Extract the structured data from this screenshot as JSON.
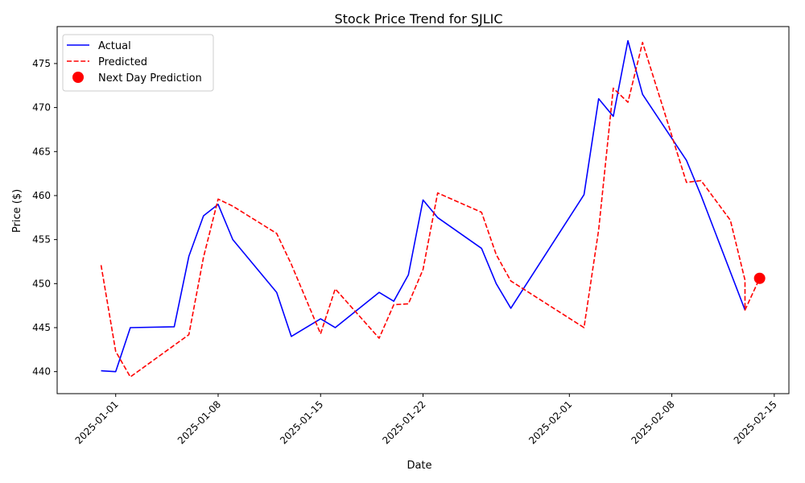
{
  "chart_data": {
    "type": "line",
    "title": "Stock Price Trend for SJLIC",
    "xlabel": "Date",
    "ylabel": "Price ($)",
    "x_axis_type": "date",
    "xlim": [
      "2024-12-28",
      "2025-02-16"
    ],
    "ylim": [
      437.5,
      479.2
    ],
    "grid": false,
    "legend_position": "top-left",
    "x_ticks": [
      "2025-01-01",
      "2025-01-08",
      "2025-01-15",
      "2025-01-22",
      "2025-02-01",
      "2025-02-08",
      "2025-02-15"
    ],
    "y_ticks": [
      440,
      445,
      450,
      455,
      460,
      465,
      470,
      475
    ],
    "series": [
      {
        "name": "Actual",
        "style": "solid",
        "color": "#0000ff",
        "points": [
          [
            "2024-12-31",
            440.1
          ],
          [
            "2025-01-01",
            440.0
          ],
          [
            "2025-01-02",
            445.0
          ],
          [
            "2025-01-05",
            445.1
          ],
          [
            "2025-01-06",
            453.1
          ],
          [
            "2025-01-07",
            457.7
          ],
          [
            "2025-01-08",
            459.0
          ],
          [
            "2025-01-09",
            455.0
          ],
          [
            "2025-01-12",
            449.0
          ],
          [
            "2025-01-13",
            444.0
          ],
          [
            "2025-01-15",
            446.0
          ],
          [
            "2025-01-16",
            445.0
          ],
          [
            "2025-01-19",
            449.0
          ],
          [
            "2025-01-20",
            448.0
          ],
          [
            "2025-01-21",
            451.0
          ],
          [
            "2025-01-22",
            459.5
          ],
          [
            "2025-01-23",
            457.5
          ],
          [
            "2025-01-26",
            454.0
          ],
          [
            "2025-01-27",
            450.0
          ],
          [
            "2025-01-28",
            447.2
          ],
          [
            "2025-02-02",
            460.1
          ],
          [
            "2025-02-03",
            471.0
          ],
          [
            "2025-02-04",
            469.0
          ],
          [
            "2025-02-05",
            477.6
          ],
          [
            "2025-02-06",
            471.5
          ],
          [
            "2025-02-09",
            464.0
          ],
          [
            "2025-02-10",
            460.0
          ],
          [
            "2025-02-13",
            447.0
          ]
        ]
      },
      {
        "name": "Predicted",
        "style": "dashed",
        "color": "#ff0000",
        "points": [
          [
            "2024-12-31",
            452.1
          ],
          [
            "2025-01-01",
            442.3
          ],
          [
            "2025-01-02",
            439.4
          ],
          [
            "2025-01-06",
            444.2
          ],
          [
            "2025-01-07",
            453.0
          ],
          [
            "2025-01-08",
            459.6
          ],
          [
            "2025-01-09",
            458.8
          ],
          [
            "2025-01-12",
            455.7
          ],
          [
            "2025-01-13",
            452.2
          ],
          [
            "2025-01-15",
            444.3
          ],
          [
            "2025-01-16",
            449.4
          ],
          [
            "2025-01-19",
            443.8
          ],
          [
            "2025-01-20",
            447.6
          ],
          [
            "2025-01-21",
            447.7
          ],
          [
            "2025-01-22",
            451.6
          ],
          [
            "2025-01-23",
            460.3
          ],
          [
            "2025-01-26",
            458.1
          ],
          [
            "2025-01-27",
            453.3
          ],
          [
            "2025-01-28",
            450.3
          ],
          [
            "2025-02-02",
            445.0
          ],
          [
            "2025-02-03",
            456.1
          ],
          [
            "2025-02-04",
            472.2
          ],
          [
            "2025-02-05",
            470.6
          ],
          [
            "2025-02-06",
            477.4
          ],
          [
            "2025-02-09",
            461.5
          ],
          [
            "2025-02-10",
            461.7
          ],
          [
            "2025-02-12",
            457.2
          ],
          [
            "2025-02-13",
            450.4
          ],
          [
            "2025-02-13",
            447.0
          ],
          [
            "2025-02-14",
            450.6
          ]
        ]
      },
      {
        "name": "Next Day Prediction",
        "style": "marker",
        "color": "#ff0000",
        "points": [
          [
            "2025-02-14",
            450.6
          ]
        ]
      }
    ]
  }
}
